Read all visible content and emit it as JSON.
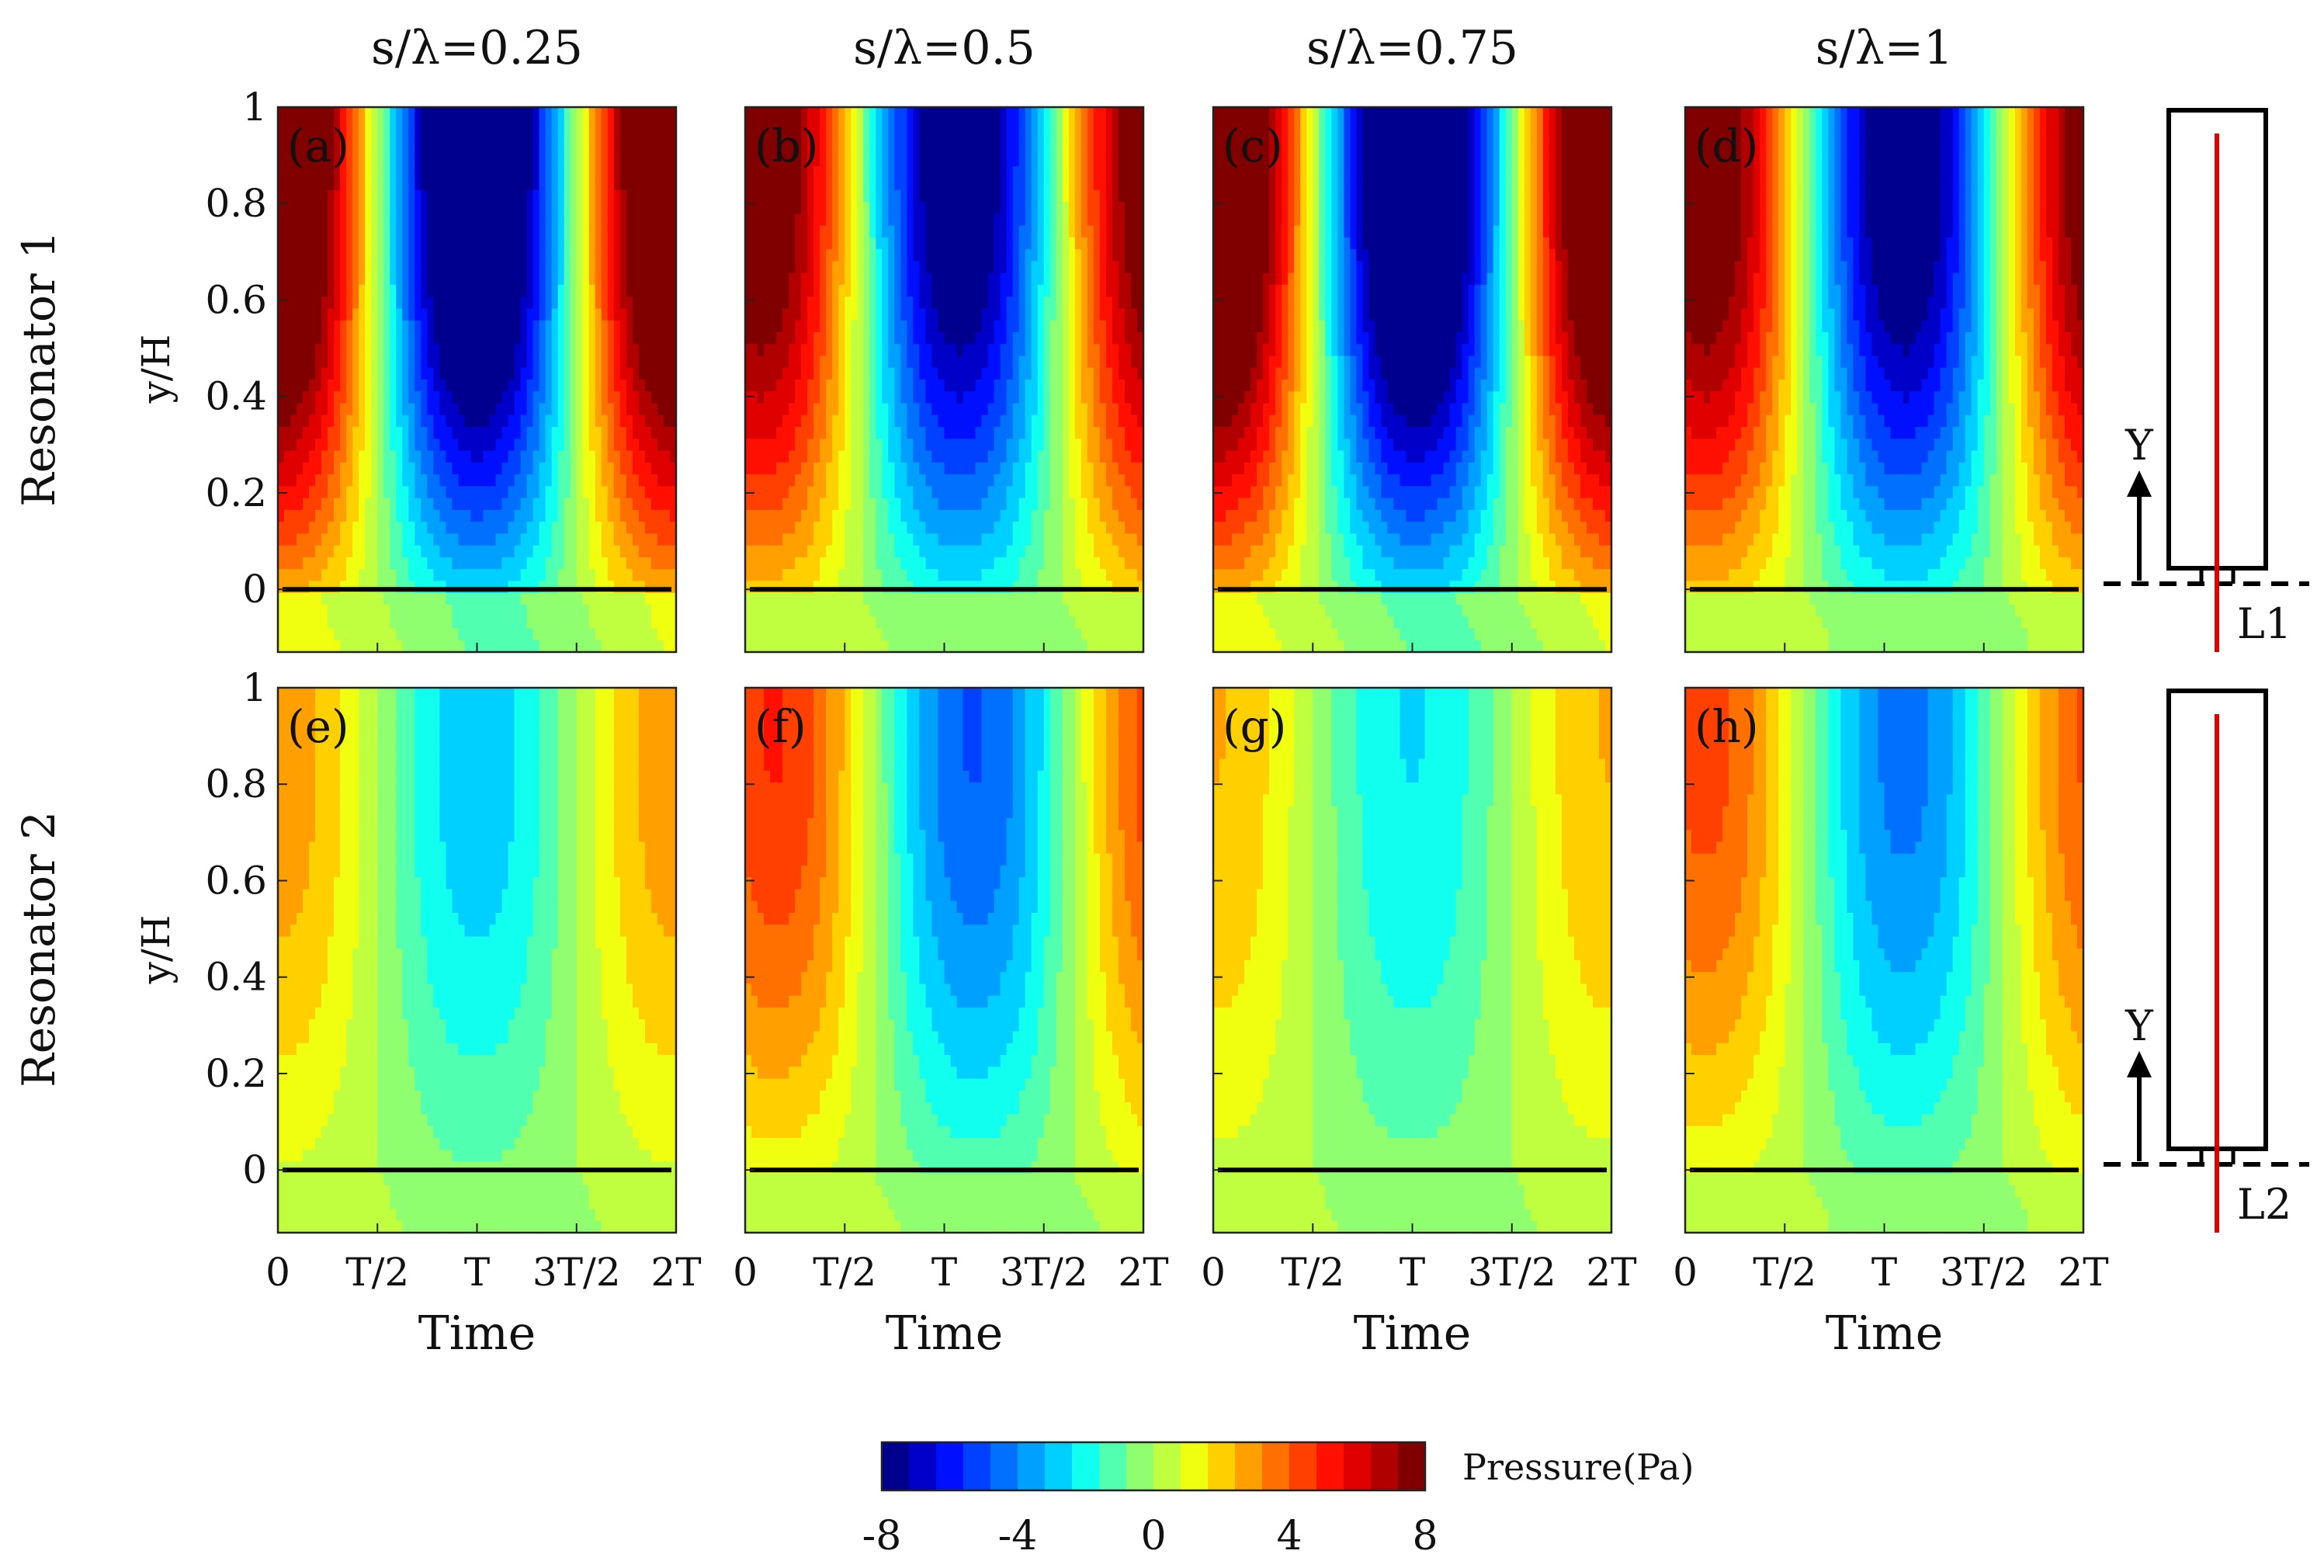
{
  "chart_data": {
    "type": "heatmap",
    "description_columns": [
      "s/λ=0.25",
      "s/λ=0.5",
      "s/λ=0.75",
      "s/λ=1"
    ],
    "rows": [
      "Resonator 1",
      "Resonator 2"
    ],
    "ylabel": "y/H",
    "xlabel": "Time",
    "x_ticks": [
      "0",
      "T/2",
      "T",
      "3T/2",
      "2T"
    ],
    "y_ticks": [
      "0",
      "0.2",
      "0.4",
      "0.6",
      "0.8",
      "1"
    ],
    "ylim": [
      -0.13,
      1
    ],
    "xlim": [
      0,
      2
    ],
    "colorbar": {
      "label": "Pressure(Pa)",
      "range": [
        -8,
        8
      ],
      "levels": 20,
      "ticks": [
        "-8",
        "-4",
        "0",
        "4",
        "8"
      ],
      "colors": [
        "#00008f",
        "#0000c8",
        "#0010ff",
        "#0040ff",
        "#0070ff",
        "#00a0ff",
        "#00d0ff",
        "#10ffef",
        "#50ffaf",
        "#90ff6f",
        "#c0ff40",
        "#f0ff10",
        "#ffd000",
        "#ffa000",
        "#ff7000",
        "#ff4000",
        "#ff1000",
        "#e00000",
        "#b00000",
        "#800000"
      ]
    },
    "panels": [
      {
        "label": "(a)",
        "row": 0,
        "col": 0,
        "amplitude": 8.0,
        "phase": 0.0
      },
      {
        "label": "(b)",
        "row": 0,
        "col": 1,
        "amplitude": 6.5,
        "phase": 0.08
      },
      {
        "label": "(c)",
        "row": 0,
        "col": 2,
        "amplitude": 8.0,
        "phase": 0.02
      },
      {
        "label": "(d)",
        "row": 0,
        "col": 3,
        "amplitude": 6.5,
        "phase": 0.1
      },
      {
        "label": "(e)",
        "row": 1,
        "col": 0,
        "amplitude": 2.2,
        "phase": 0.0
      },
      {
        "label": "(f)",
        "row": 1,
        "col": 1,
        "amplitude": 3.6,
        "phase": 0.15
      },
      {
        "label": "(g)",
        "row": 1,
        "col": 2,
        "amplitude": 1.8,
        "phase": 0.0
      },
      {
        "label": "(h)",
        "row": 1,
        "col": 3,
        "amplitude": 3.2,
        "phase": 0.1
      }
    ],
    "schematics": [
      {
        "axis_label": "Y",
        "line_label": "L1"
      },
      {
        "axis_label": "Y",
        "line_label": "L2"
      }
    ]
  }
}
